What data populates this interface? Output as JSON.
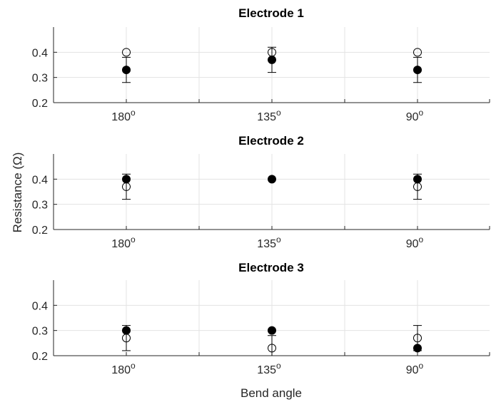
{
  "chart_data": {
    "type": "scatter",
    "layout": "3 stacked subplots with error bars",
    "xlabel": "Bend angle",
    "ylabel": "Resistance (Ω)",
    "categories": [
      "180°",
      "135°",
      "90°"
    ],
    "category_labels": [
      {
        "base": "180",
        "sup": "o"
      },
      {
        "base": "135",
        "sup": "o"
      },
      {
        "base": "90",
        "sup": "o"
      }
    ],
    "yticks": [
      "0.2",
      "0.3",
      "0.4"
    ],
    "ylim": [
      0.2,
      0.5
    ],
    "grid": true,
    "legend": null,
    "subplots": [
      {
        "title": "Electrode 1",
        "series": [
          {
            "name": "filled",
            "marker": "filled-circle",
            "values": [
              0.33,
              0.37,
              0.33
            ]
          },
          {
            "name": "open",
            "marker": "open-circle",
            "values": [
              0.4,
              0.4,
              0.4
            ]
          }
        ],
        "error_bars": [
          [
            0.28,
            0.38
          ],
          [
            0.32,
            0.42
          ],
          [
            0.28,
            0.38
          ]
        ]
      },
      {
        "title": "Electrode 2",
        "series": [
          {
            "name": "filled",
            "marker": "filled-circle",
            "values": [
              0.4,
              0.4,
              0.4
            ]
          },
          {
            "name": "open",
            "marker": "open-circle",
            "values": [
              0.37,
              null,
              0.37
            ]
          }
        ],
        "error_bars": [
          [
            0.32,
            0.42
          ],
          null,
          [
            0.32,
            0.42
          ]
        ]
      },
      {
        "title": "Electrode 3",
        "series": [
          {
            "name": "filled",
            "marker": "filled-circle",
            "values": [
              0.3,
              0.3,
              0.23
            ]
          },
          {
            "name": "open",
            "marker": "open-circle",
            "values": [
              0.27,
              0.23,
              0.27
            ]
          }
        ],
        "error_bars": [
          [
            0.22,
            0.32
          ],
          [
            0.18,
            0.28
          ],
          [
            0.22,
            0.32
          ]
        ]
      }
    ]
  }
}
